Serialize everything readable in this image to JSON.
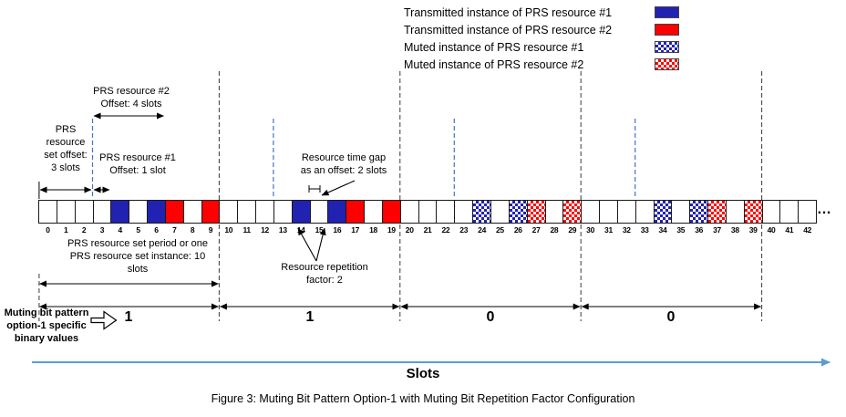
{
  "colors": {
    "resource1": "#2222B2",
    "resource2": "#FF0000",
    "dashed_offset": "#4472C4",
    "dashed_period": "#3a3a3a",
    "slots_arrow": "#5B9BD5"
  },
  "legend": {
    "items": [
      {
        "label": "Transmitted instance of PRS resource #1",
        "state": "res1"
      },
      {
        "label": "Transmitted instance of PRS resource #2",
        "state": "res2"
      },
      {
        "label": "Muted instance of PRS resource #1",
        "state": "muted1"
      },
      {
        "label": "Muted instance of PRS resource #2",
        "state": "muted2"
      }
    ]
  },
  "annotations": {
    "set_offset": "PRS\nresource\nset offset:\n3 slots",
    "res2_offset": "PRS resource #2\nOffset: 4 slots",
    "res1_offset": "PRS resource #1\nOffset: 1 slot",
    "time_gap": "Resource time gap\nas an offset: 2 slots",
    "set_period": "PRS resource set period or one\nPRS resource set instance: 10\nslots",
    "repetition": "Resource repetition\nfactor: 2",
    "muting_label": "Muting bit pattern\noption-1 specific\nbinary values",
    "ellipsis": "…"
  },
  "slots": {
    "numbers": [
      0,
      1,
      2,
      3,
      4,
      5,
      6,
      7,
      8,
      9,
      10,
      11,
      12,
      13,
      14,
      15,
      16,
      17,
      18,
      19,
      20,
      21,
      22,
      23,
      24,
      25,
      26,
      27,
      28,
      29,
      30,
      31,
      32,
      33,
      34,
      35,
      36,
      37,
      38,
      39,
      40,
      41,
      42
    ],
    "states": [
      "white",
      "white",
      "white",
      "white",
      "res1",
      "white",
      "res1",
      "res2",
      "white",
      "res2",
      "white",
      "white",
      "white",
      "white",
      "res1",
      "white",
      "res1",
      "res2",
      "white",
      "res2",
      "white",
      "white",
      "white",
      "white",
      "muted1",
      "white",
      "muted1",
      "muted2",
      "white",
      "muted2",
      "white",
      "white",
      "white",
      "white",
      "muted1",
      "white",
      "muted1",
      "muted2",
      "white",
      "muted2",
      "white",
      "white",
      "white"
    ]
  },
  "muting_bits": [
    "1",
    "1",
    "0",
    "0"
  ],
  "axis": {
    "label": "Slots"
  },
  "caption": "Figure 3: Muting Bit Pattern Option-1 with Muting Bit Repetition Factor Configuration"
}
